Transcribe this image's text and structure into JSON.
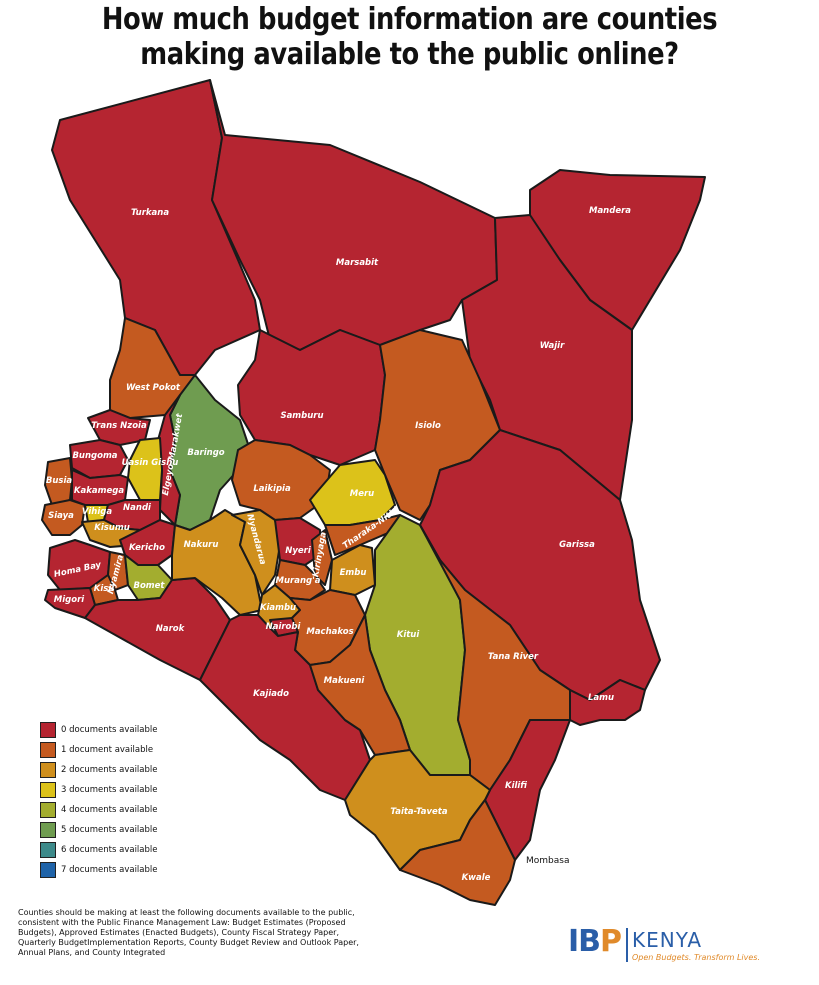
{
  "title": {
    "line1": "How much budget information are counties",
    "line2": "making available to the public online?"
  },
  "colors": {
    "c0": "#b52531",
    "c1": "#c45a20",
    "c2": "#cf8f1d",
    "c3": "#dcc21a",
    "c4": "#a3ad2f",
    "c5": "#6f9c50",
    "c6": "#3d8a8a",
    "c7": "#1f63a8"
  },
  "legend": [
    {
      "label": "0 documents available",
      "color": "#b52531"
    },
    {
      "label": "1 document available",
      "color": "#c45a20"
    },
    {
      "label": "2 documents available",
      "color": "#cf8f1d"
    },
    {
      "label": "3 documents available",
      "color": "#dcc21a"
    },
    {
      "label": "4 documents available",
      "color": "#a3ad2f"
    },
    {
      "label": "5 documents available",
      "color": "#6f9c50"
    },
    {
      "label": "6 documents available",
      "color": "#3d8a8a"
    },
    {
      "label": "7 documents available",
      "color": "#1f63a8"
    }
  ],
  "counties": {
    "turkana": {
      "name": "Turkana",
      "documents": 0
    },
    "marsabit": {
      "name": "Marsabit",
      "documents": 0
    },
    "mandera": {
      "name": "Mandera",
      "documents": 0
    },
    "wajir": {
      "name": "Wajir",
      "documents": 0
    },
    "west_pokot": {
      "name": "West Pokot",
      "documents": 1
    },
    "samburu": {
      "name": "Samburu",
      "documents": 0
    },
    "isiolo": {
      "name": "Isiolo",
      "documents": 1
    },
    "trans_nzoia": {
      "name": "Trans Nzoia",
      "documents": 0
    },
    "baringo": {
      "name": "Baringo",
      "documents": 5
    },
    "elgeyo_marakwet": {
      "name": "Elgeyo-Marakwet",
      "documents": 0
    },
    "uasin_gishu": {
      "name": "Uasin Gishu",
      "documents": 3
    },
    "bungoma": {
      "name": "Bungoma",
      "documents": 0
    },
    "busia": {
      "name": "Busia",
      "documents": 1
    },
    "kakamega": {
      "name": "Kakamega",
      "documents": 0
    },
    "siaya": {
      "name": "Siaya",
      "documents": 1
    },
    "vihiga": {
      "name": "Vihiga",
      "documents": 3
    },
    "nandi": {
      "name": "Nandi",
      "documents": 0
    },
    "kisumu": {
      "name": "Kisumu",
      "documents": 2
    },
    "kericho": {
      "name": "Kericho",
      "documents": 0
    },
    "homa_bay": {
      "name": "Homa Bay",
      "documents": 0
    },
    "nyamira": {
      "name": "Nyamira",
      "documents": 1
    },
    "kisii": {
      "name": "Kisii",
      "documents": 1
    },
    "migori": {
      "name": "Migori",
      "documents": 0
    },
    "bomet": {
      "name": "Bomet",
      "documents": 4
    },
    "laikipia": {
      "name": "Laikipia",
      "documents": 1
    },
    "meru": {
      "name": "Meru",
      "documents": 3
    },
    "nakuru": {
      "name": "Nakuru",
      "documents": 2
    },
    "nyandarua": {
      "name": "Nyandarua",
      "documents": 2
    },
    "nyeri": {
      "name": "Nyeri",
      "documents": 0
    },
    "kirinyaga": {
      "name": "Kirinyaga",
      "documents": 1
    },
    "tharaka_nithi": {
      "name": "Tharaka-Nithi",
      "documents": 1
    },
    "embu": {
      "name": "Embu",
      "documents": 2
    },
    "muranga": {
      "name": "Murang'a",
      "documents": 1
    },
    "kiambu": {
      "name": "Kiambu",
      "documents": 2
    },
    "nairobi": {
      "name": "Nairobi",
      "documents": 0
    },
    "machakos": {
      "name": "Machakos",
      "documents": 1
    },
    "kitui": {
      "name": "Kitui",
      "documents": 4
    },
    "narok": {
      "name": "Narok",
      "documents": 0
    },
    "kajiado": {
      "name": "Kajiado",
      "documents": 0
    },
    "makueni": {
      "name": "Makueni",
      "documents": 1
    },
    "garissa": {
      "name": "Garissa",
      "documents": 0
    },
    "tana_river": {
      "name": "Tana River",
      "documents": 1
    },
    "lamu": {
      "name": "Lamu",
      "documents": 0
    },
    "kilifi": {
      "name": "Kilifi",
      "documents": 0
    },
    "taita_taveta": {
      "name": "Taita-Taveta",
      "documents": 2
    },
    "kwale": {
      "name": "Kwale",
      "documents": 1
    }
  },
  "mombasa_label": "Mombasa",
  "footnote": "Counties should be making at least the following documents available to the public, consistent with the Public Finance Management Law: Budget Estimates (Proposed Budgets), Approved Estimates (Enacted Budgets), County Fiscal Strategy Paper, Quarterly BudgetImplementation Reports, County Budget Review and Outlook Paper, Annual Plans, and County Integrated",
  "logo": {
    "ibp_i": "I",
    "ibp_b": "B",
    "ibp_p": "P",
    "kenya": "KENYA",
    "tagline": "Open Budgets. Transform Lives."
  }
}
